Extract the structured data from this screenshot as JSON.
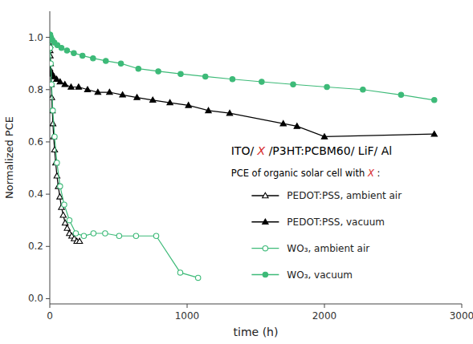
{
  "chart_data": {
    "type": "line",
    "title": "ITO/ X /P3HT:PCBM60/ LiF/ Al",
    "subtitle": "PCE of organic solar cell with X :",
    "xlabel": "time (h)",
    "ylabel": "Normalized PCE",
    "xlim": [
      0,
      3000
    ],
    "ylim": [
      -0.02,
      1.1
    ],
    "xticks": [
      0,
      1000,
      2000,
      3000
    ],
    "yticks": [
      {
        "value": 0.0,
        "label": "0.0"
      },
      0.2,
      0.4,
      0.6,
      0.8,
      {
        "value": 1.0,
        "label": "1.0"
      }
    ],
    "grid": false,
    "legend": "lower right",
    "series": [
      {
        "name": "PEDOT:PSS, ambient air",
        "color": "#000000",
        "marker": "open-triangle",
        "x": [
          0,
          1,
          2,
          3,
          5,
          7,
          10,
          14,
          18,
          23,
          28,
          35,
          43,
          52,
          62,
          73,
          85,
          98,
          112,
          127,
          143,
          160,
          178,
          197,
          217
        ],
        "values": [
          1.0,
          0.97,
          0.95,
          0.93,
          0.9,
          0.87,
          0.82,
          0.77,
          0.72,
          0.67,
          0.62,
          0.57,
          0.52,
          0.47,
          0.43,
          0.39,
          0.35,
          0.32,
          0.29,
          0.27,
          0.25,
          0.24,
          0.23,
          0.22,
          0.22
        ]
      },
      {
        "name": "PEDOT:PSS, vacuum",
        "color": "#000000",
        "marker": "triangle",
        "x": [
          0,
          5,
          15,
          30,
          50,
          75,
          110,
          155,
          210,
          275,
          350,
          435,
          530,
          635,
          750,
          875,
          1010,
          1155,
          1310,
          1700,
          1800,
          2000,
          2800
        ],
        "values": [
          0.88,
          0.87,
          0.86,
          0.85,
          0.84,
          0.83,
          0.82,
          0.81,
          0.81,
          0.8,
          0.79,
          0.79,
          0.78,
          0.77,
          0.76,
          0.75,
          0.74,
          0.72,
          0.71,
          0.67,
          0.66,
          0.62,
          0.63
        ]
      },
      {
        "name": "WO₃, ambient air",
        "color": "#3dba78",
        "marker": "open-circle",
        "x": [
          0,
          3,
          7,
          13,
          22,
          35,
          52,
          75,
          105,
          143,
          190,
          248,
          318,
          403,
          505,
          628,
          775,
          950,
          1080
        ],
        "values": [
          1.0,
          0.96,
          0.9,
          0.82,
          0.72,
          0.62,
          0.52,
          0.43,
          0.36,
          0.3,
          0.25,
          0.24,
          0.25,
          0.25,
          0.24,
          0.24,
          0.24,
          0.1,
          0.08
        ]
      },
      {
        "name": "WO₃, vacuum",
        "color": "#3dba78",
        "marker": "circle",
        "x": [
          0,
          3,
          8,
          18,
          33,
          55,
          85,
          125,
          175,
          238,
          315,
          408,
          518,
          645,
          790,
          953,
          1133,
          1330,
          1543,
          1772,
          2018,
          2280,
          2558,
          2800
        ],
        "values": [
          1.01,
          1.01,
          1.0,
          0.99,
          0.98,
          0.97,
          0.96,
          0.95,
          0.94,
          0.93,
          0.92,
          0.91,
          0.9,
          0.88,
          0.87,
          0.86,
          0.85,
          0.84,
          0.83,
          0.82,
          0.81,
          0.8,
          0.78,
          0.76
        ]
      }
    ]
  }
}
